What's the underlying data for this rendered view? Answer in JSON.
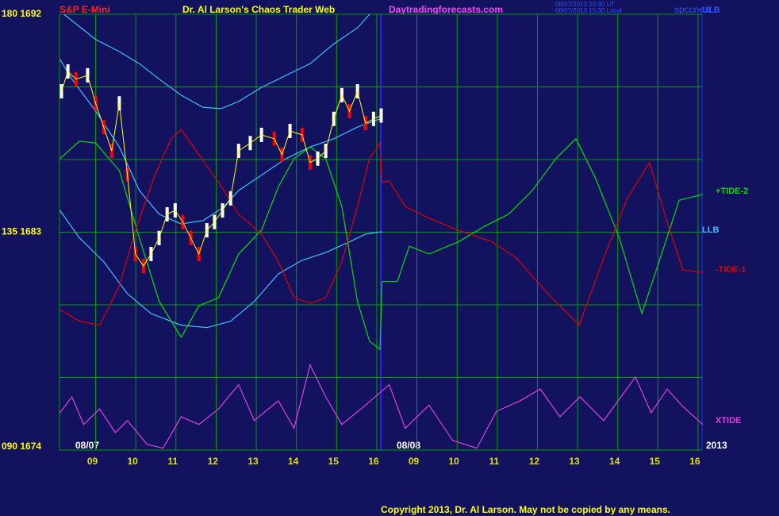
{
  "chart_data": {
    "type": "line",
    "instrument": "S&P E-Mini",
    "title": "Dr. Al Larson's Chaos Trader Web",
    "website": "Daytradingforecasts.com",
    "timestamps": [
      "08/07/2013 20:30 UT",
      "08/07/2013 15:30 Local"
    ],
    "file_label": "spccnext",
    "copyright": "Copyright 2013, Dr. Al Larson. May not be copied by any means.",
    "date_labels": [
      "08/07",
      "08/08",
      "2013"
    ],
    "xlim": [
      0.1,
      16.1
    ],
    "xticks": [
      {
        "value": 1,
        "label": "09"
      },
      {
        "value": 2,
        "label": "10"
      },
      {
        "value": 3,
        "label": "11"
      },
      {
        "value": 4,
        "label": "12"
      },
      {
        "value": 5,
        "label": "13"
      },
      {
        "value": 6,
        "label": "14"
      },
      {
        "value": 7,
        "label": "15"
      },
      {
        "value": 8,
        "label": "16"
      },
      {
        "value": 9,
        "label": "09"
      },
      {
        "value": 10,
        "label": "10"
      },
      {
        "value": 11,
        "label": "11"
      },
      {
        "value": 12,
        "label": "12"
      },
      {
        "value": 13,
        "label": "13"
      },
      {
        "value": 14,
        "label": "14"
      },
      {
        "value": 15,
        "label": "15"
      },
      {
        "value": 16,
        "label": "16"
      }
    ],
    "ylim": [
      90,
      180
    ],
    "yticks": [
      {
        "value": 180,
        "label": "180 1692"
      },
      {
        "value": 135,
        "label": "135 1683"
      },
      {
        "value": 90,
        "label": "090 1674"
      }
    ],
    "grid_y": [
      165,
      150,
      120,
      105
    ],
    "grid": true,
    "price": {
      "up_color": "#ffffff",
      "down_color": "#ff0000",
      "line_color": "#ffff00",
      "x": [
        0.15,
        0.31,
        0.51,
        0.8,
        1.0,
        1.2,
        1.4,
        1.59,
        1.79,
        1.99,
        2.19,
        2.38,
        2.58,
        2.78,
        2.98,
        3.17,
        3.37,
        3.57,
        3.77,
        3.96,
        4.16,
        4.36,
        4.56,
        4.85,
        5.13,
        5.45,
        5.64,
        5.84,
        6.14,
        6.34,
        6.53,
        6.73,
        6.93,
        7.13,
        7.32,
        7.52,
        7.72,
        7.92,
        8.11
      ],
      "values": [
        164.1,
        168.2,
        166.6,
        167.4,
        161.6,
        156.7,
        151.8,
        161.6,
        146.9,
        130.5,
        128.0,
        130.5,
        133.8,
        138.7,
        139.5,
        137.1,
        133.8,
        130.5,
        135.4,
        137.1,
        139.5,
        142.0,
        151.8,
        153.4,
        155.1,
        154.3,
        151.0,
        155.9,
        155.1,
        149.4,
        150.2,
        151.8,
        158.4,
        163.3,
        160.0,
        164.1,
        157.5,
        158.4,
        159.1
      ]
    },
    "series": [
      {
        "name": "ULB",
        "color": "#40c0ff",
        "x": [
          0.21,
          1.0,
          1.59,
          2.09,
          2.58,
          3.13,
          3.67,
          4.12,
          4.56,
          5.13,
          5.74,
          6.34,
          6.93,
          7.52,
          7.82
        ],
        "values": [
          180,
          174.8,
          172.3,
          169.8,
          166.6,
          163.3,
          160.8,
          160.5,
          162.0,
          164.9,
          167.4,
          169.8,
          173.9,
          177.2,
          180
        ]
      },
      {
        "color": "#40c0ff",
        "x": [
          0.11,
          0.41,
          1.0,
          1.59,
          2.09,
          2.58,
          3.13,
          3.67,
          4.16,
          4.56,
          5.15,
          5.74,
          6.34,
          6.93,
          7.52,
          8.08
        ],
        "values": [
          170.7,
          166.6,
          160.0,
          152.6,
          143.6,
          138.7,
          136.7,
          137.4,
          140.0,
          143.6,
          146.9,
          150.2,
          152.6,
          154.3,
          156.7,
          158.4
        ]
      },
      {
        "name": "LLB",
        "color": "#40c0ff",
        "x": [
          0.11,
          0.6,
          1.2,
          1.79,
          2.38,
          3.13,
          3.77,
          4.36,
          4.95,
          5.55,
          6.14,
          6.73,
          7.32,
          7.72,
          8.13
        ],
        "values": [
          139.5,
          133.8,
          128.9,
          122.3,
          118.2,
          115.8,
          115.3,
          116.6,
          120.7,
          126.4,
          129.2,
          130.8,
          133.0,
          134.6,
          135.1
        ]
      },
      {
        "name": "+TIDE-2",
        "color": "#00e000",
        "x": [
          0.11,
          0.6,
          1.0,
          1.59,
          2.09,
          2.58,
          3.13,
          3.57,
          4.06,
          4.56,
          5.13,
          5.55,
          5.94,
          6.34,
          6.73,
          7.13,
          7.52,
          7.82,
          8.08,
          8.13,
          8.51,
          8.81,
          9.3,
          10.03,
          10.68,
          11.28,
          11.87,
          12.46,
          12.96,
          13.45,
          14.04,
          14.6,
          15.03,
          15.53,
          16.12
        ],
        "values": [
          150.2,
          153.8,
          153.4,
          147.7,
          133.8,
          120.7,
          113.3,
          119.8,
          121.5,
          130.5,
          135.4,
          144.4,
          150.2,
          152.6,
          150.2,
          140.3,
          120.7,
          112.5,
          110.8,
          124.8,
          124.8,
          132.1,
          130.5,
          133.0,
          136.2,
          138.7,
          143.6,
          150.2,
          154.3,
          146.1,
          133.8,
          118.2,
          128.9,
          141.6,
          142.8
        ]
      },
      {
        "name": "-TIDE-1",
        "color": "#e00000",
        "x": [
          0.11,
          0.6,
          1.1,
          1.59,
          1.99,
          2.48,
          2.88,
          3.13,
          3.57,
          4.06,
          4.56,
          5.13,
          5.55,
          5.94,
          6.34,
          6.73,
          7.13,
          7.52,
          7.82,
          8.08,
          8.13,
          8.31,
          8.71,
          9.3,
          10.03,
          10.88,
          11.47,
          12.26,
          13.04,
          13.65,
          14.24,
          14.79,
          15.23,
          15.62,
          16.12
        ],
        "values": [
          119.0,
          116.6,
          115.8,
          123.9,
          135.4,
          146.9,
          154.3,
          156.2,
          151.0,
          145.3,
          138.7,
          134.6,
          128.9,
          121.5,
          120.3,
          121.5,
          128.9,
          140.3,
          150.2,
          153.4,
          145.3,
          145.6,
          140.3,
          137.9,
          135.4,
          133.0,
          129.7,
          122.3,
          115.8,
          129.7,
          142.0,
          149.4,
          137.1,
          127.2,
          126.7
        ]
      },
      {
        "name": "XTIDE",
        "color": "#e040e0",
        "x": [
          0.11,
          0.41,
          0.7,
          1.1,
          1.49,
          1.79,
          2.28,
          2.68,
          3.13,
          3.57,
          4.06,
          4.56,
          4.95,
          5.55,
          5.94,
          6.34,
          6.73,
          7.13,
          7.72,
          8.31,
          8.71,
          9.3,
          9.89,
          10.49,
          10.98,
          11.57,
          12.07,
          12.56,
          13.06,
          13.65,
          14.44,
          14.83,
          15.23,
          15.62,
          16.12
        ],
        "values": [
          97.7,
          101.0,
          95.3,
          98.5,
          93.6,
          96.1,
          91.2,
          90.4,
          96.9,
          95.3,
          98.5,
          103.5,
          96.1,
          100.2,
          94.5,
          107.6,
          101.0,
          95.3,
          99.3,
          103.5,
          94.5,
          99.3,
          92.0,
          90.4,
          98.0,
          100.2,
          102.6,
          96.9,
          101.0,
          96.1,
          105.1,
          97.7,
          102.6,
          99.0,
          95.3
        ]
      }
    ]
  }
}
